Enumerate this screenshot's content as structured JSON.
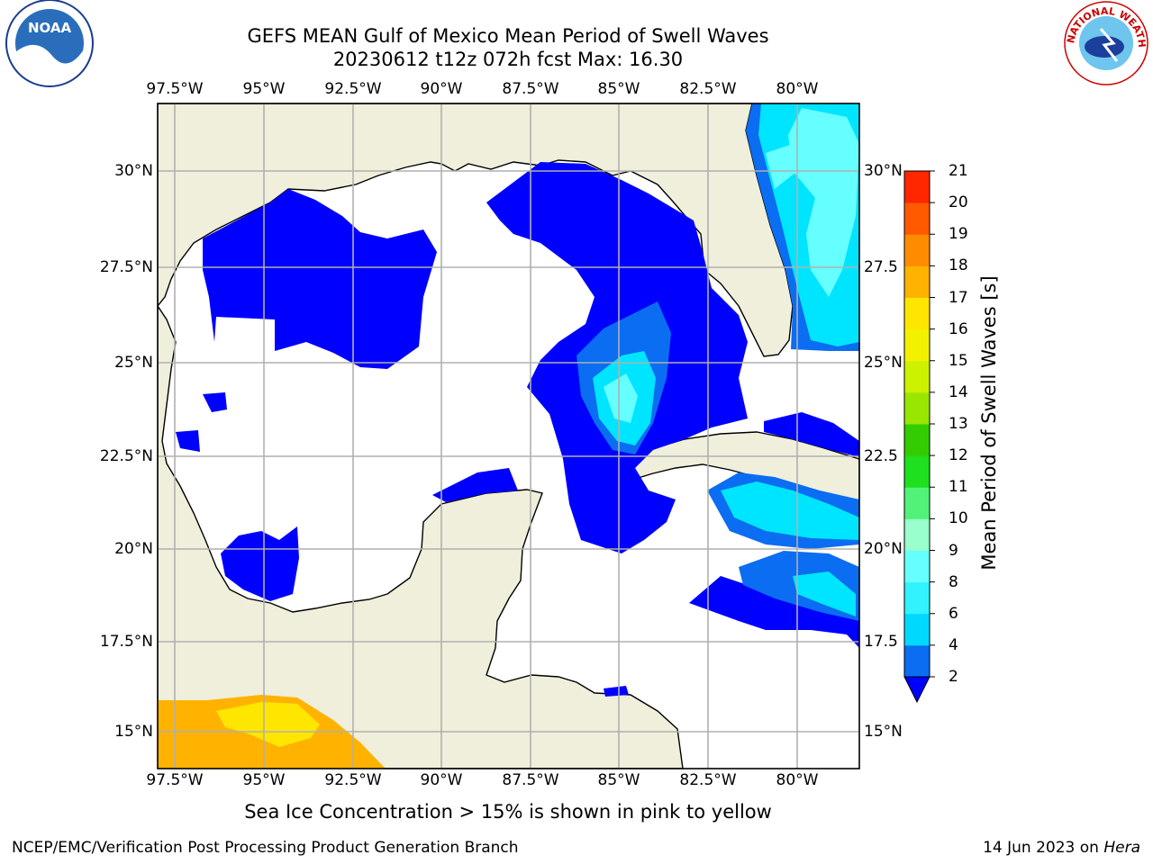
{
  "title": {
    "line1": "GEFS MEAN Gulf of Mexico Mean Period of Swell Waves",
    "line2": "20230612 t12z 072h fcst   Max: 16.30"
  },
  "logos": {
    "left": "NOAA",
    "right": "NATIONAL WEATHER SERVICE"
  },
  "map": {
    "lon_labels": [
      "97.5°W",
      "95°W",
      "92.5°W",
      "90°W",
      "87.5°W",
      "85°W",
      "82.5°W",
      "80°W"
    ],
    "lat_labels_left": [
      "30°N",
      "27.5°N",
      "25°N",
      "22.5°N",
      "20°N",
      "17.5°N",
      "15°N"
    ],
    "lat_labels_right": [
      "30°N",
      "27.5",
      "25°N",
      "22.5",
      "20°N",
      "17.5",
      "15°N"
    ],
    "land_color": "#efefdc",
    "ocean_color": "#ffffff",
    "grid_color": "#b0b0b0"
  },
  "colorbar": {
    "label": "Mean Period of Swell Waves [s]",
    "ticks": [
      "2",
      "4",
      "6",
      "8",
      "9",
      "10",
      "11",
      "12",
      "13",
      "14",
      "15",
      "16",
      "17",
      "18",
      "19",
      "20",
      "21"
    ],
    "colors": [
      "#0b6df2",
      "#00d9ff",
      "#33f2ff",
      "#66ffff",
      "#99ffcc",
      "#52f279",
      "#1ee01e",
      "#33cc00",
      "#99e600",
      "#ccf200",
      "#f2f200",
      "#ffe600",
      "#ffb300",
      "#ff8c00",
      "#ff5a00",
      "#ff2600",
      "#ff0000"
    ],
    "extend_color": "#0000ff"
  },
  "note": "Sea Ice Concentration > 15% is shown in pink to yellow",
  "footer": {
    "credit": "NCEP/EMC/Verification Post Processing Product Generation Branch",
    "date": "14 Jun 2023 on",
    "machine": "Hera"
  }
}
